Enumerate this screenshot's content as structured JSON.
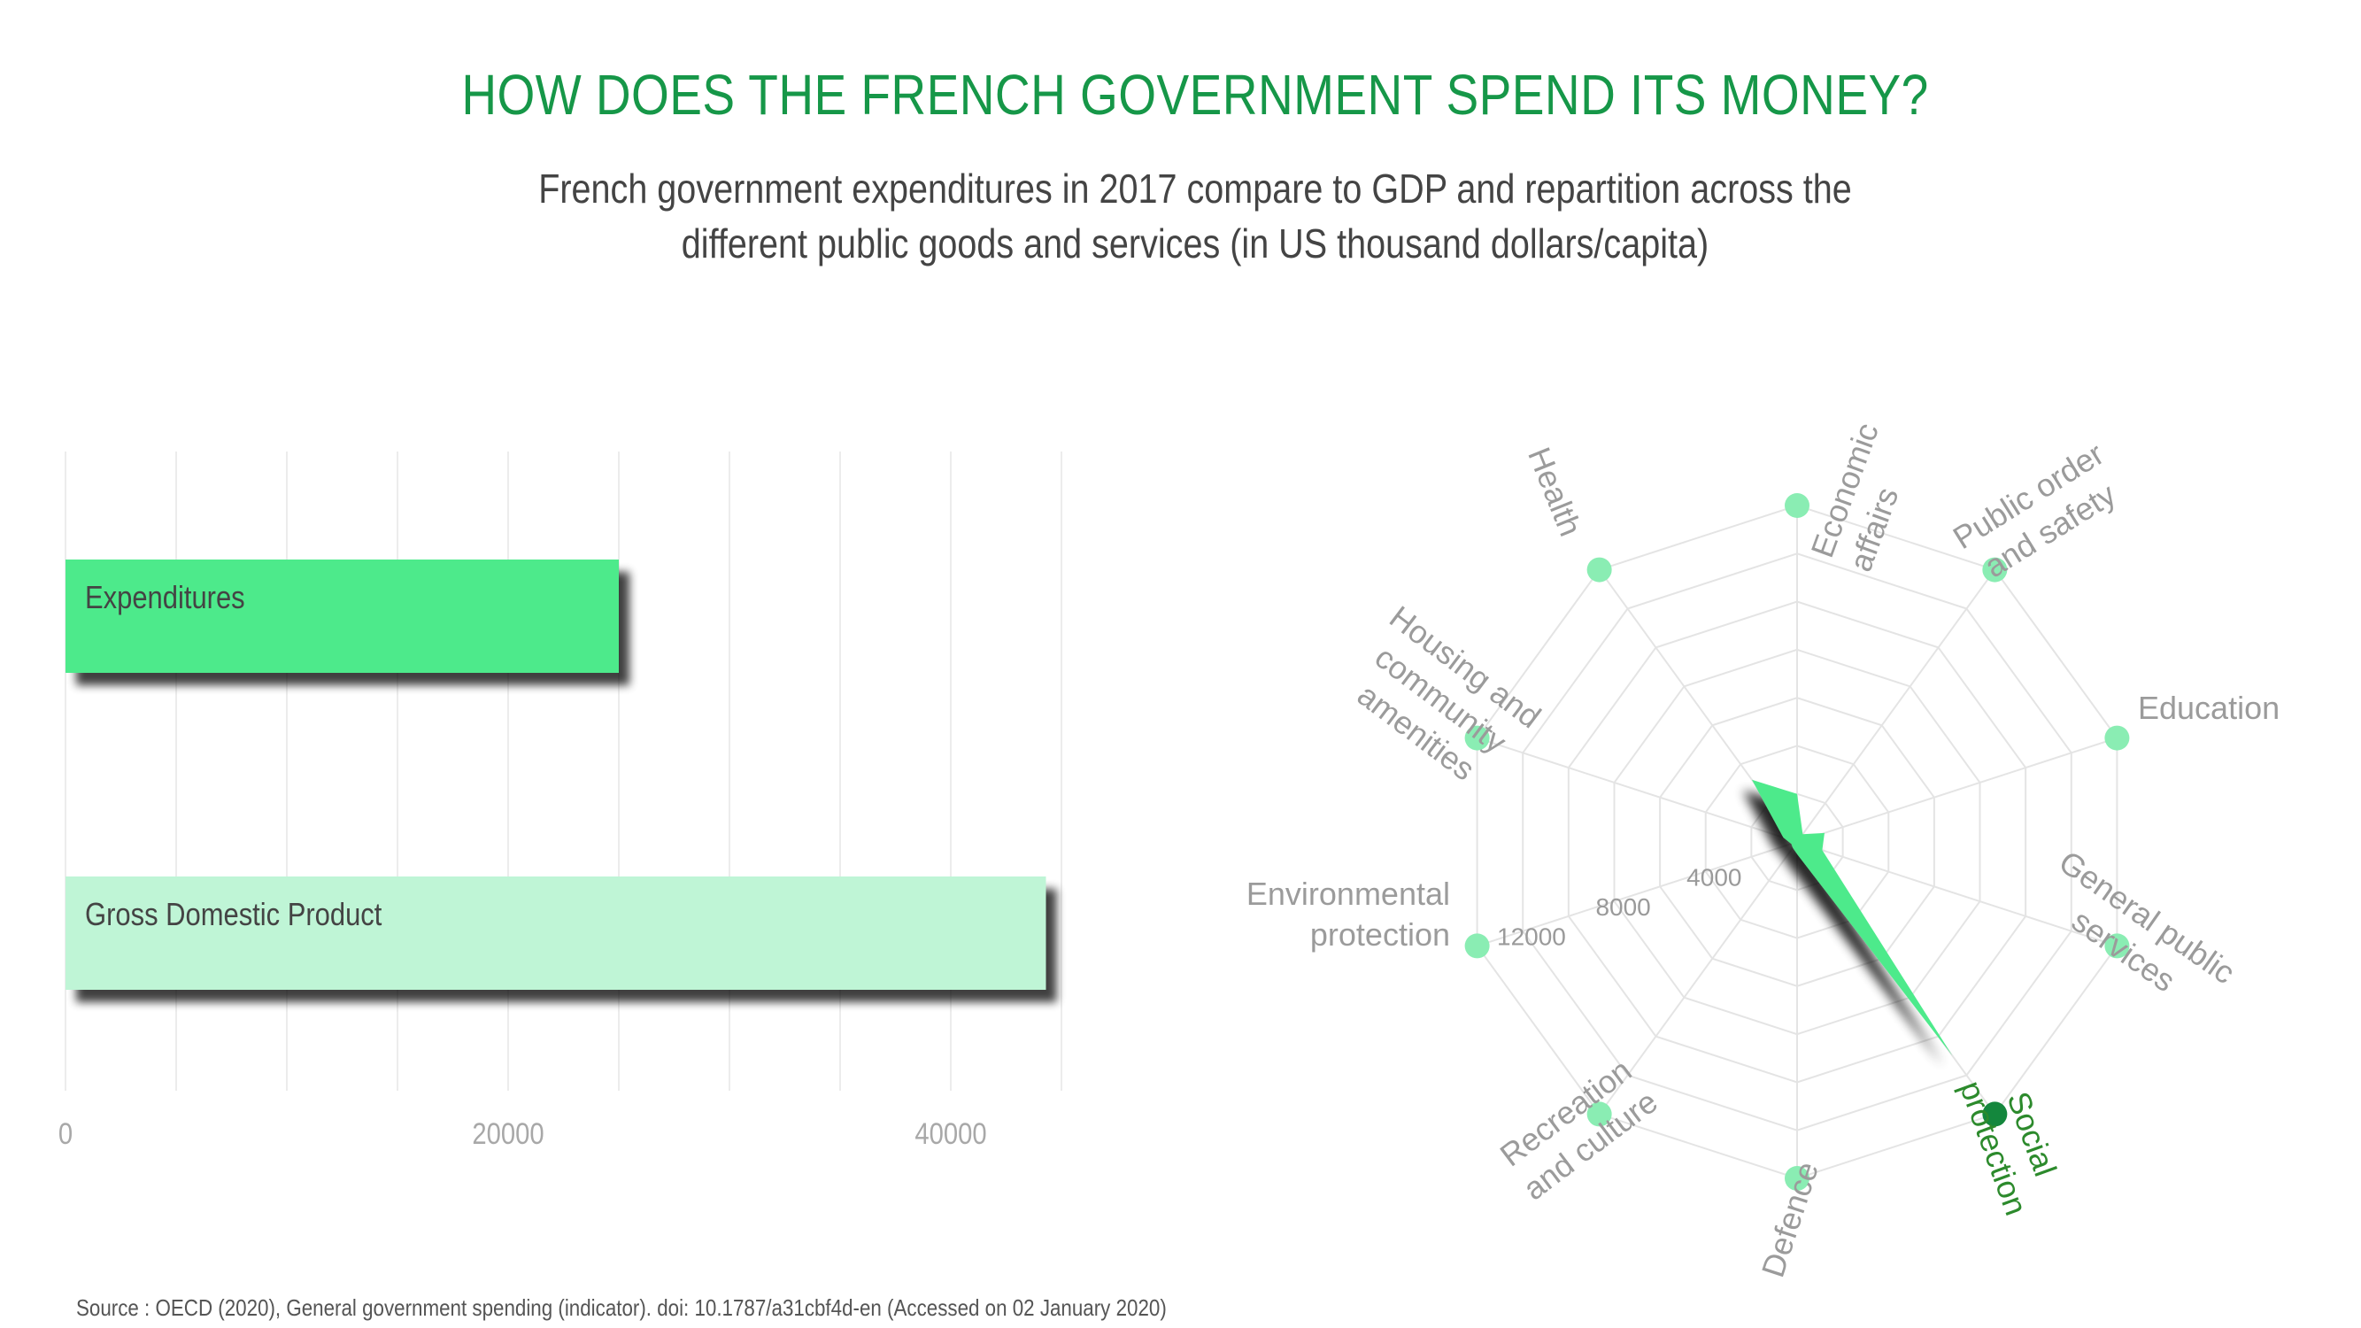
{
  "header": {
    "title": "HOW DOES THE FRENCH GOVERNMENT SPEND ITS MONEY?",
    "subtitle_line1": "French government expenditures in 2017 compare to GDP and repartition across the",
    "subtitle_line2": "different public goods and services (in US thousand dollars/capita)"
  },
  "source": "Source : OECD (2020), General government spending (indicator). doi: 10.1787/a31cbf4d-en (Accessed on 02 January 2020)",
  "colors": {
    "title": "#169748",
    "bar_expenditures": "#4eea8b",
    "bar_gdp": "#bff5d6",
    "radar_fill": "#4eea8b",
    "radar_dot": "#8aedb3",
    "radar_dot_active": "#14873d"
  },
  "chart_data": [
    {
      "type": "bar",
      "orientation": "horizontal",
      "categories": [
        "Expenditures",
        "Gross Domestic Product"
      ],
      "values": [
        25000,
        44300
      ],
      "xlim": [
        0,
        45000
      ],
      "xticks": [
        "0",
        "20000",
        "40000"
      ],
      "grid": true
    },
    {
      "type": "radar",
      "axes": [
        "Economic affairs",
        "Public order and safety",
        "Education",
        "General public services",
        "Social protection",
        "Defence",
        "Recreation and culture",
        "Environmental protection",
        "Housing and community amenities",
        "Health"
      ],
      "values": [
        2000,
        400,
        1200,
        1100,
        11000,
        500,
        300,
        250,
        600,
        3200
      ],
      "rlim": [
        0,
        14000
      ],
      "ring_labels": [
        "4000",
        "8000",
        "12000"
      ],
      "highlighted_axis": "Social protection"
    }
  ]
}
